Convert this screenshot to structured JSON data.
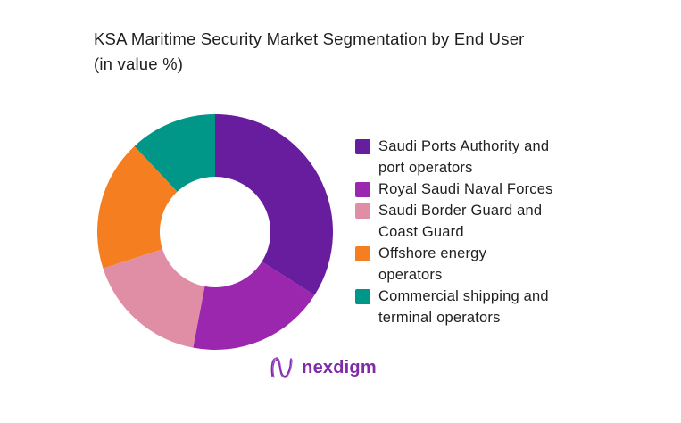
{
  "title": {
    "line1": "KSA Maritime Security Market Segmentation by End User",
    "line2": "(in value %)"
  },
  "chart_data": {
    "type": "pie",
    "subtype": "donut",
    "title": "KSA Maritime Security Market Segmentation by End User (in value %)",
    "unit": "value %",
    "start_angle_deg": 0,
    "direction": "clockwise",
    "inner_radius_ratio": 0.47,
    "legend_position": "right",
    "data_labels_shown": false,
    "values_note": "percentages estimated from arc angles; no numeric labels are rendered in the image",
    "segments": [
      {
        "label": "Saudi Ports Authority and port operators",
        "label_lines": [
          "Saudi Ports Authority and",
          "port operators"
        ],
        "value": 34,
        "color": "#681C9E"
      },
      {
        "label": "Royal Saudi Naval Forces",
        "label_lines": [
          "Royal Saudi Naval Forces"
        ],
        "value": 19,
        "color": "#9A27AE"
      },
      {
        "label": "Saudi Border Guard and Coast Guard",
        "label_lines": [
          "Saudi Border Guard and",
          "Coast Guard"
        ],
        "value": 17,
        "color": "#E08DA6"
      },
      {
        "label": "Offshore energy operators",
        "label_lines": [
          "Offshore energy",
          "operators"
        ],
        "value": 18,
        "color": "#F57E20"
      },
      {
        "label": "Commercial shipping and terminal operators",
        "label_lines": [
          "Commercial shipping and",
          "terminal operators"
        ],
        "value": 12,
        "color": "#009688"
      }
    ]
  },
  "footer": {
    "logo_text": "nexdigm",
    "logo_color": "#7E2BA8",
    "logo_icon_color_1": "#7E2BA8",
    "logo_icon_color_2": "#A855D8"
  }
}
